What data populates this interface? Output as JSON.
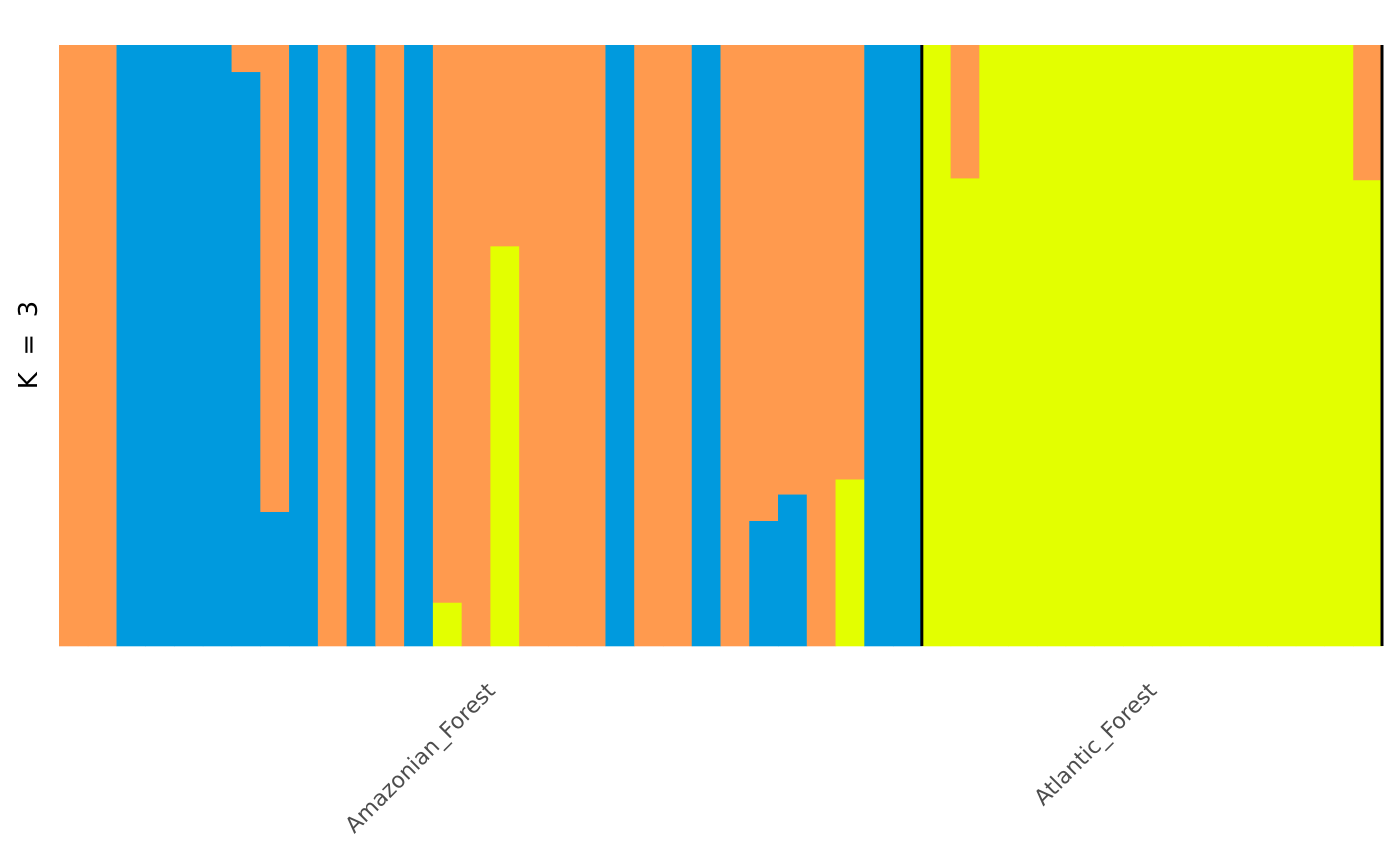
{
  "chart_data": {
    "type": "bar",
    "stacked": true,
    "orientation": "vertical",
    "ylabel": "K  =  3",
    "xlabel": "",
    "title": "",
    "ylim": [
      0,
      1
    ],
    "grid": false,
    "legend": "none",
    "clusters": [
      {
        "id": "cluster1",
        "color": "#009ADE"
      },
      {
        "id": "cluster2",
        "color": "#FF9A4E"
      },
      {
        "id": "cluster3",
        "color": "#E3FF00"
      }
    ],
    "populations": [
      {
        "name": "Amazonian_Forest",
        "n": 30
      },
      {
        "name": "Atlantic_Forest",
        "n": 16
      }
    ],
    "individuals": [
      {
        "pop": "Amazonian_Forest",
        "cluster1": 0.0,
        "cluster2": 1.0,
        "cluster3": 0.0
      },
      {
        "pop": "Amazonian_Forest",
        "cluster1": 0.0,
        "cluster2": 1.0,
        "cluster3": 0.0
      },
      {
        "pop": "Amazonian_Forest",
        "cluster1": 1.0,
        "cluster2": 0.0,
        "cluster3": 0.0
      },
      {
        "pop": "Amazonian_Forest",
        "cluster1": 1.0,
        "cluster2": 0.0,
        "cluster3": 0.0
      },
      {
        "pop": "Amazonian_Forest",
        "cluster1": 1.0,
        "cluster2": 0.0,
        "cluster3": 0.0
      },
      {
        "pop": "Amazonian_Forest",
        "cluster1": 1.0,
        "cluster2": 0.0,
        "cluster3": 0.0
      },
      {
        "pop": "Amazonian_Forest",
        "cluster1": 0.955,
        "cluster2": 0.045,
        "cluster3": 0.0
      },
      {
        "pop": "Amazonian_Forest",
        "cluster1": 0.223,
        "cluster2": 0.777,
        "cluster3": 0.0
      },
      {
        "pop": "Amazonian_Forest",
        "cluster1": 1.0,
        "cluster2": 0.0,
        "cluster3": 0.0
      },
      {
        "pop": "Amazonian_Forest",
        "cluster1": 0.0,
        "cluster2": 1.0,
        "cluster3": 0.0
      },
      {
        "pop": "Amazonian_Forest",
        "cluster1": 1.0,
        "cluster2": 0.0,
        "cluster3": 0.0
      },
      {
        "pop": "Amazonian_Forest",
        "cluster1": 0.0,
        "cluster2": 1.0,
        "cluster3": 0.0
      },
      {
        "pop": "Amazonian_Forest",
        "cluster1": 1.0,
        "cluster2": 0.0,
        "cluster3": 0.0
      },
      {
        "pop": "Amazonian_Forest",
        "cluster1": 0.0,
        "cluster2": 0.928,
        "cluster3": 0.072
      },
      {
        "pop": "Amazonian_Forest",
        "cluster1": 0.0,
        "cluster2": 1.0,
        "cluster3": 0.0
      },
      {
        "pop": "Amazonian_Forest",
        "cluster1": 0.0,
        "cluster2": 0.335,
        "cluster3": 0.665
      },
      {
        "pop": "Amazonian_Forest",
        "cluster1": 0.0,
        "cluster2": 1.0,
        "cluster3": 0.0
      },
      {
        "pop": "Amazonian_Forest",
        "cluster1": 0.0,
        "cluster2": 1.0,
        "cluster3": 0.0
      },
      {
        "pop": "Amazonian_Forest",
        "cluster1": 0.0,
        "cluster2": 1.0,
        "cluster3": 0.0
      },
      {
        "pop": "Amazonian_Forest",
        "cluster1": 1.0,
        "cluster2": 0.0,
        "cluster3": 0.0
      },
      {
        "pop": "Amazonian_Forest",
        "cluster1": 0.0,
        "cluster2": 1.0,
        "cluster3": 0.0
      },
      {
        "pop": "Amazonian_Forest",
        "cluster1": 0.0,
        "cluster2": 1.0,
        "cluster3": 0.0
      },
      {
        "pop": "Amazonian_Forest",
        "cluster1": 1.0,
        "cluster2": 0.0,
        "cluster3": 0.0
      },
      {
        "pop": "Amazonian_Forest",
        "cluster1": 0.0,
        "cluster2": 1.0,
        "cluster3": 0.0
      },
      {
        "pop": "Amazonian_Forest",
        "cluster1": 0.208,
        "cluster2": 0.792,
        "cluster3": 0.0
      },
      {
        "pop": "Amazonian_Forest",
        "cluster1": 0.252,
        "cluster2": 0.748,
        "cluster3": 0.0
      },
      {
        "pop": "Amazonian_Forest",
        "cluster1": 0.0,
        "cluster2": 1.0,
        "cluster3": 0.0
      },
      {
        "pop": "Amazonian_Forest",
        "cluster1": 0.0,
        "cluster2": 0.723,
        "cluster3": 0.277
      },
      {
        "pop": "Amazonian_Forest",
        "cluster1": 1.0,
        "cluster2": 0.0,
        "cluster3": 0.0
      },
      {
        "pop": "Amazonian_Forest",
        "cluster1": 1.0,
        "cluster2": 0.0,
        "cluster3": 0.0
      },
      {
        "pop": "Atlantic_Forest",
        "cluster1": 0.0,
        "cluster2": 0.0,
        "cluster3": 1.0
      },
      {
        "pop": "Atlantic_Forest",
        "cluster1": 0.0,
        "cluster2": 0.222,
        "cluster3": 0.778
      },
      {
        "pop": "Atlantic_Forest",
        "cluster1": 0.0,
        "cluster2": 0.0,
        "cluster3": 1.0
      },
      {
        "pop": "Atlantic_Forest",
        "cluster1": 0.0,
        "cluster2": 0.0,
        "cluster3": 1.0
      },
      {
        "pop": "Atlantic_Forest",
        "cluster1": 0.0,
        "cluster2": 0.0,
        "cluster3": 1.0
      },
      {
        "pop": "Atlantic_Forest",
        "cluster1": 0.0,
        "cluster2": 0.0,
        "cluster3": 1.0
      },
      {
        "pop": "Atlantic_Forest",
        "cluster1": 0.0,
        "cluster2": 0.0,
        "cluster3": 1.0
      },
      {
        "pop": "Atlantic_Forest",
        "cluster1": 0.0,
        "cluster2": 0.0,
        "cluster3": 1.0
      },
      {
        "pop": "Atlantic_Forest",
        "cluster1": 0.0,
        "cluster2": 0.0,
        "cluster3": 1.0
      },
      {
        "pop": "Atlantic_Forest",
        "cluster1": 0.0,
        "cluster2": 0.0,
        "cluster3": 1.0
      },
      {
        "pop": "Atlantic_Forest",
        "cluster1": 0.0,
        "cluster2": 0.0,
        "cluster3": 1.0
      },
      {
        "pop": "Atlantic_Forest",
        "cluster1": 0.0,
        "cluster2": 0.0,
        "cluster3": 1.0
      },
      {
        "pop": "Atlantic_Forest",
        "cluster1": 0.0,
        "cluster2": 0.0,
        "cluster3": 1.0
      },
      {
        "pop": "Atlantic_Forest",
        "cluster1": 0.0,
        "cluster2": 0.0,
        "cluster3": 1.0
      },
      {
        "pop": "Atlantic_Forest",
        "cluster1": 0.0,
        "cluster2": 0.0,
        "cluster3": 1.0
      },
      {
        "pop": "Atlantic_Forest",
        "cluster1": 0.0,
        "cluster2": 0.225,
        "cluster3": 0.775
      }
    ]
  }
}
